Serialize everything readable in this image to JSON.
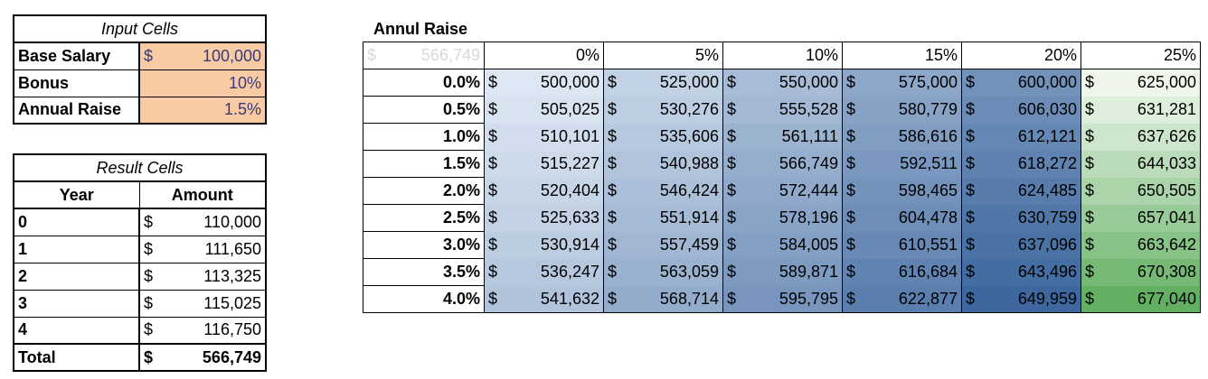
{
  "input": {
    "title": "Input Cells",
    "rows": [
      {
        "label": "Base Salary",
        "dollar": "$",
        "value": "100,000"
      },
      {
        "label": "Bonus",
        "dollar": "",
        "value": "10%"
      },
      {
        "label": "Annual Raise",
        "dollar": "",
        "value": "1.5%"
      }
    ]
  },
  "result": {
    "title": "Result Cells",
    "headers": [
      "Year",
      "Amount"
    ],
    "rows": [
      {
        "year": "0",
        "dollar": "$",
        "amount": "110,000"
      },
      {
        "year": "1",
        "dollar": "$",
        "amount": "111,650"
      },
      {
        "year": "2",
        "dollar": "$",
        "amount": "113,325"
      },
      {
        "year": "3",
        "dollar": "$",
        "amount": "115,025"
      },
      {
        "year": "4",
        "dollar": "$",
        "amount": "116,750"
      }
    ],
    "total": {
      "label": "Total",
      "dollar": "$",
      "amount": "566,749"
    }
  },
  "table": {
    "title": "Annul Raise",
    "corner": {
      "dollar": "$",
      "value": "566,749"
    },
    "columns": [
      "0%",
      "5%",
      "10%",
      "15%",
      "20%",
      "25%"
    ],
    "rows": [
      {
        "label": "0.0%",
        "values": [
          "500,000",
          "525,000",
          "550,000",
          "575,000",
          "600,000",
          "625,000"
        ]
      },
      {
        "label": "0.5%",
        "values": [
          "505,025",
          "530,276",
          "555,528",
          "580,779",
          "606,030",
          "631,281"
        ]
      },
      {
        "label": "1.0%",
        "values": [
          "510,101",
          "535,606",
          "561,111",
          "586,616",
          "612,121",
          "637,626"
        ]
      },
      {
        "label": "1.5%",
        "values": [
          "515,227",
          "540,988",
          "566,749",
          "592,511",
          "618,272",
          "644,033"
        ]
      },
      {
        "label": "2.0%",
        "values": [
          "520,404",
          "546,424",
          "572,444",
          "598,465",
          "624,485",
          "650,505"
        ]
      },
      {
        "label": "2.5%",
        "values": [
          "525,633",
          "551,914",
          "578,196",
          "604,478",
          "630,759",
          "657,041"
        ]
      },
      {
        "label": "3.0%",
        "values": [
          "530,914",
          "557,459",
          "584,005",
          "610,551",
          "637,096",
          "663,642"
        ]
      },
      {
        "label": "3.5%",
        "values": [
          "536,247",
          "563,059",
          "589,871",
          "616,684",
          "643,496",
          "670,308"
        ]
      },
      {
        "label": "4.0%",
        "values": [
          "541,632",
          "568,714",
          "595,795",
          "622,877",
          "649,959",
          "677,040"
        ]
      }
    ],
    "currency": "$",
    "colors": {
      "blue_low": "#dde7f3",
      "blue_high": "#3d679e",
      "green_low": "#eef6ec",
      "green_high": "#63b063",
      "text": "#000000",
      "text_on_dark": "#000000"
    }
  }
}
